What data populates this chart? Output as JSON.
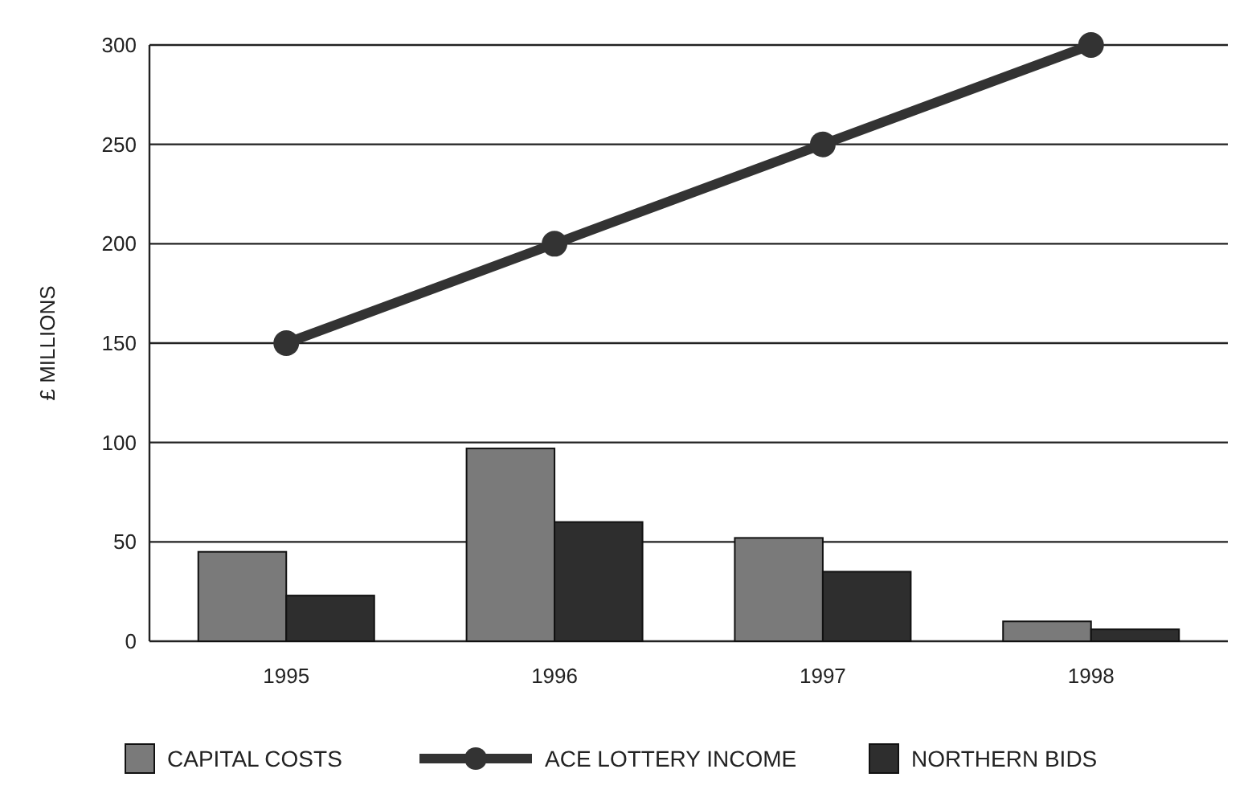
{
  "chart_data": {
    "type": "bar",
    "ylabel": "£ MILLIONS",
    "categories": [
      "1995",
      "1996",
      "1997",
      "1998"
    ],
    "series": [
      {
        "name": "CAPITAL COSTS",
        "color": "#7a7a7a",
        "values": [
          45,
          97,
          52,
          10
        ]
      },
      {
        "name": "ACE LOTTERY INCOME",
        "type": "line",
        "color": "#333333",
        "values": [
          150,
          200,
          250,
          300
        ]
      },
      {
        "name": "NORTHERN BIDS",
        "color": "#2e2e2e",
        "values": [
          23,
          60,
          35,
          6
        ]
      }
    ],
    "ylim": [
      0,
      300
    ],
    "yticks": [
      0,
      50,
      100,
      150,
      200,
      250,
      300
    ],
    "grid": "y",
    "legend": "bottom",
    "marker": "circle"
  }
}
